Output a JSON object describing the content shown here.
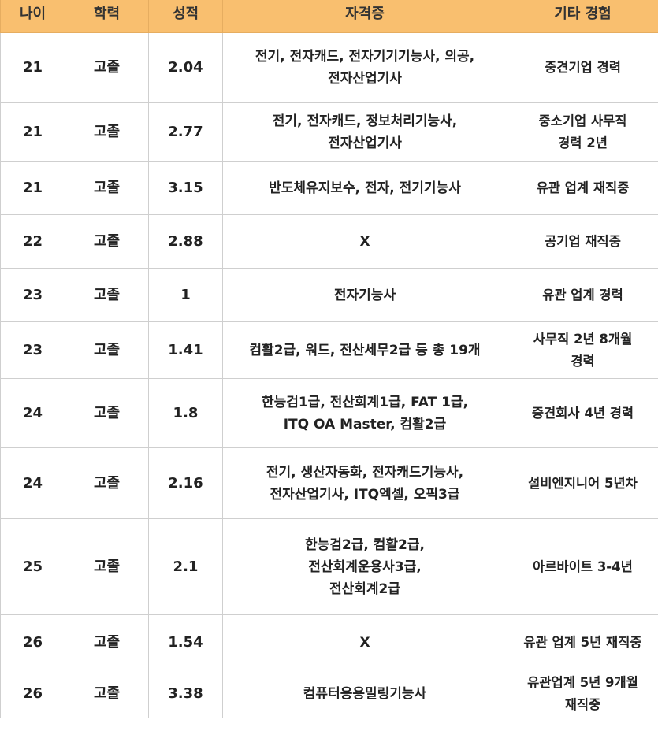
{
  "table": {
    "header_color": "#f9bf6f",
    "columns": [
      "나이",
      "학력",
      "성적",
      "자격증",
      "기타 경험"
    ],
    "rows": [
      {
        "age": "21",
        "edu": "고졸",
        "gpa": "2.04",
        "cert": "전기, 전자캐드, 전자기기기능사, 의공,\n전자산업기사",
        "exp": "중견기업 경력"
      },
      {
        "age": "21",
        "edu": "고졸",
        "gpa": "2.77",
        "cert": "전기, 전자캐드, 정보처리기능사,\n전자산업기사",
        "exp": "중소기업 사무직\n경력 2년"
      },
      {
        "age": "21",
        "edu": "고졸",
        "gpa": "3.15",
        "cert": "반도체유지보수, 전자, 전기기능사",
        "exp": "유관 업계 재직중"
      },
      {
        "age": "22",
        "edu": "고졸",
        "gpa": "2.88",
        "cert": "X",
        "exp": "공기업 재직중"
      },
      {
        "age": "23",
        "edu": "고졸",
        "gpa": "1",
        "cert": "전자기능사",
        "exp": "유관 업계 경력"
      },
      {
        "age": "23",
        "edu": "고졸",
        "gpa": "1.41",
        "cert": "컴활2급, 워드, 전산세무2급 등 총 19개",
        "exp": "사무직 2년 8개월\n경력"
      },
      {
        "age": "24",
        "edu": "고졸",
        "gpa": "1.8",
        "cert": "한능검1급, 전산회계1급, FAT 1급,\nITQ OA Master, 컴활2급",
        "exp": "중견회사 4년 경력"
      },
      {
        "age": "24",
        "edu": "고졸",
        "gpa": "2.16",
        "cert": "전기, 생산자동화, 전자캐드기능사,\n전자산업기사, ITQ엑셀, 오픽3급",
        "exp": "설비엔지니어 5년차"
      },
      {
        "age": "25",
        "edu": "고졸",
        "gpa": "2.1",
        "cert": "한능검2급, 컴활2급,\n전산회계운용사3급,\n전산회계2급",
        "exp": "아르바이트 3-4년"
      },
      {
        "age": "26",
        "edu": "고졸",
        "gpa": "1.54",
        "cert": "X",
        "exp": "유관 업계 5년 재직중"
      },
      {
        "age": "26",
        "edu": "고졸",
        "gpa": "3.38",
        "cert": "컴퓨터응용밀링기능사",
        "exp": "유관업계 5년 9개월\n재직중"
      }
    ]
  }
}
